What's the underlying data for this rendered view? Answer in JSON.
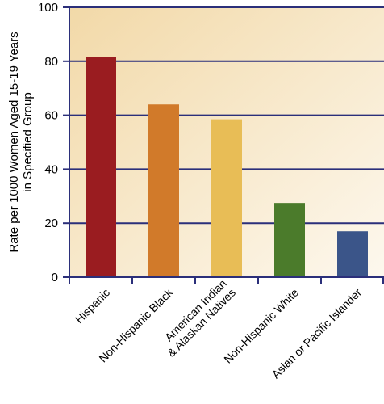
{
  "chart_data": {
    "type": "bar",
    "title": "",
    "xlabel": "",
    "ylabel_lines": [
      "Rate per 1000 Women Aged 15-19 Years",
      "in Specified Group"
    ],
    "ylim": [
      0,
      100
    ],
    "yticks": [
      0,
      20,
      40,
      60,
      80,
      100
    ],
    "grid": true,
    "categories": [
      "Hispanic",
      "Non-Hispanic Black",
      "American Indian & Alaskan Natives",
      "Non-Hispanic White",
      "Asian or Pacific Islander"
    ],
    "category_label_lines": [
      [
        "Hispanic"
      ],
      [
        "Non-Hispanic Black"
      ],
      [
        "American Indian",
        "& Alaskan Natives"
      ],
      [
        "Non-Hispanic White"
      ],
      [
        "Asian or Pacific Islander"
      ]
    ],
    "values": [
      81.5,
      64,
      58.5,
      27.5,
      17
    ],
    "bar_colors": [
      "#9a1c20",
      "#d17a2a",
      "#e8bd56",
      "#4b7b2b",
      "#3b5589"
    ],
    "axis_color": "#2b2f7a",
    "background_gradient": [
      "#f2d9a8",
      "#fdf8ee"
    ]
  }
}
